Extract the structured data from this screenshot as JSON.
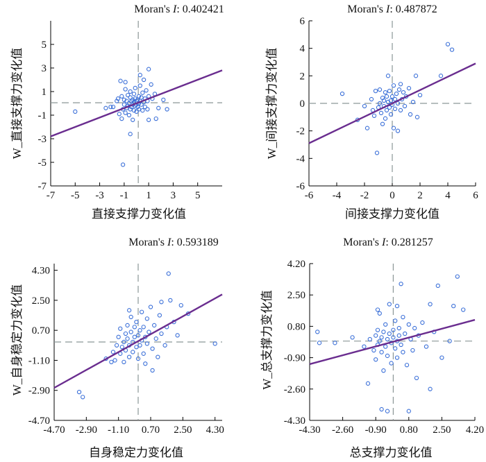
{
  "chart_data": [
    {
      "type": "scatter",
      "title_prefix": "Moran's ",
      "title_stat": "I",
      "title_value": ": 0.402421",
      "xlabel": "直接支撑力变化值",
      "ylabel": "W_直接支撑力变化值",
      "xlim": [
        -7,
        7
      ],
      "ylim": [
        -7,
        7
      ],
      "xticks": [
        "-7",
        "-5",
        "-3",
        "-1",
        "1",
        "3",
        "5"
      ],
      "yticks": [
        "-7",
        "-5",
        "-3",
        "-1",
        "1",
        "3",
        "5"
      ],
      "xtick_values": [
        -7,
        -5,
        -3,
        -1,
        1,
        3,
        5
      ],
      "ytick_values": [
        -7,
        -5,
        -3,
        -1,
        1,
        3,
        5
      ],
      "mean_x": 0.15,
      "mean_y": 0.05,
      "fit_line": [
        [
          -7,
          -2.8
        ],
        [
          7,
          2.8
        ]
      ],
      "grid": false,
      "point_color": "#3a6fd8",
      "line_color": "#6a2d8f",
      "points": [
        [
          -5,
          -0.7
        ],
        [
          -2.1,
          -0.3
        ],
        [
          -1.9,
          -0.3
        ],
        [
          -1.6,
          0.2
        ],
        [
          -1.5,
          0.4
        ],
        [
          -1.4,
          -0.9
        ],
        [
          -1.3,
          1.9
        ],
        [
          -1.2,
          0.6
        ],
        [
          -1.2,
          -1.3
        ],
        [
          -1.1,
          -0.5
        ],
        [
          -1.0,
          -0.1
        ],
        [
          -1.0,
          0.3
        ],
        [
          -0.9,
          -0.8
        ],
        [
          -0.9,
          1.2
        ],
        [
          -0.8,
          0.2
        ],
        [
          -0.8,
          -0.4
        ],
        [
          -0.7,
          0.7
        ],
        [
          -0.7,
          -0.2
        ],
        [
          -0.6,
          -1.0
        ],
        [
          -0.6,
          0.0
        ],
        [
          -0.5,
          -0.5
        ],
        [
          -0.5,
          0.5
        ],
        [
          -0.5,
          1.0
        ],
        [
          -0.4,
          -0.3
        ],
        [
          -0.4,
          0.2
        ],
        [
          -0.3,
          -1.4
        ],
        [
          -0.3,
          0.3
        ],
        [
          -0.3,
          -0.1
        ],
        [
          -0.2,
          0.8
        ],
        [
          -0.2,
          -0.6
        ],
        [
          -0.2,
          0.1
        ],
        [
          -0.1,
          0.4
        ],
        [
          -0.1,
          -0.2
        ],
        [
          -0.1,
          1.3
        ],
        [
          0.0,
          -0.1
        ],
        [
          0.0,
          0.2
        ],
        [
          0.0,
          -0.7
        ],
        [
          0.1,
          0.3
        ],
        [
          0.1,
          -0.3
        ],
        [
          0.2,
          0.6
        ],
        [
          0.2,
          0.0
        ],
        [
          0.2,
          -0.5
        ],
        [
          0.3,
          1.5
        ],
        [
          0.3,
          0.2
        ],
        [
          0.4,
          -0.1
        ],
        [
          0.4,
          0.5
        ],
        [
          0.5,
          0.9
        ],
        [
          0.5,
          -0.6
        ],
        [
          0.6,
          0.1
        ],
        [
          0.6,
          2.0
        ],
        [
          0.7,
          0.4
        ],
        [
          0.7,
          -0.3
        ],
        [
          0.8,
          1.1
        ],
        [
          0.9,
          0.2
        ],
        [
          1.0,
          0.6
        ],
        [
          1.0,
          -1.4
        ],
        [
          1.2,
          1.6
        ],
        [
          1.3,
          0.4
        ],
        [
          1.5,
          0.8
        ],
        [
          1.8,
          -0.4
        ],
        [
          2.2,
          0.3
        ],
        [
          1.0,
          2.9
        ],
        [
          0.3,
          2.4
        ],
        [
          -0.9,
          1.8
        ],
        [
          -1.1,
          -5.2
        ],
        [
          -0.5,
          -2.6
        ],
        [
          -2.5,
          -0.4
        ],
        [
          2.5,
          -0.5
        ],
        [
          1.6,
          -1.3
        ],
        [
          0.9,
          -0.5
        ]
      ]
    },
    {
      "type": "scatter",
      "title_prefix": "Moran's ",
      "title_stat": "I",
      "title_value": ": 0.487872",
      "xlabel": "间接支撑力变化值",
      "ylabel": "W_间接支撑力变化值",
      "xlim": [
        -6,
        6
      ],
      "ylim": [
        -6,
        6
      ],
      "xticks": [
        "-6",
        "-4",
        "-2",
        "0",
        "2",
        "4",
        "6"
      ],
      "yticks": [
        "-6",
        "-4",
        "-2",
        "0",
        "2",
        "4",
        "6"
      ],
      "xtick_values": [
        -6,
        -4,
        -2,
        0,
        2,
        4,
        6
      ],
      "ytick_values": [
        -6,
        -4,
        -2,
        0,
        2,
        4,
        6
      ],
      "mean_x": 0.0,
      "mean_y": 0.0,
      "fit_line": [
        [
          -6,
          -2.9
        ],
        [
          6,
          2.9
        ]
      ],
      "grid": false,
      "point_color": "#3a6fd8",
      "line_color": "#6a2d8f",
      "points": [
        [
          -3.6,
          0.7
        ],
        [
          -2.0,
          -0.2
        ],
        [
          -1.8,
          -1.8
        ],
        [
          -1.5,
          0.3
        ],
        [
          -1.4,
          -0.5
        ],
        [
          -1.2,
          0.9
        ],
        [
          -1.1,
          -3.6
        ],
        [
          -1.0,
          -0.3
        ],
        [
          -0.9,
          0.0
        ],
        [
          -0.9,
          1.0
        ],
        [
          -0.8,
          -0.7
        ],
        [
          -0.7,
          0.4
        ],
        [
          -0.7,
          -1.5
        ],
        [
          -0.6,
          0.2
        ],
        [
          -0.6,
          -0.2
        ],
        [
          -0.5,
          0.8
        ],
        [
          -0.5,
          -1.1
        ],
        [
          -0.4,
          0.5
        ],
        [
          -0.4,
          -0.5
        ],
        [
          -0.3,
          2.0
        ],
        [
          -0.3,
          0.1
        ],
        [
          -0.2,
          -0.3
        ],
        [
          -0.2,
          0.9
        ],
        [
          -0.1,
          0.2
        ],
        [
          -0.1,
          -0.8
        ],
        [
          0.0,
          0.5
        ],
        [
          0.0,
          -0.1
        ],
        [
          0.1,
          1.3
        ],
        [
          0.1,
          -1.8
        ],
        [
          0.2,
          0.3
        ],
        [
          0.2,
          -0.4
        ],
        [
          0.3,
          0.7
        ],
        [
          0.4,
          0.0
        ],
        [
          0.4,
          -2.0
        ],
        [
          0.5,
          1.0
        ],
        [
          0.6,
          -0.5
        ],
        [
          0.7,
          0.3
        ],
        [
          0.8,
          0.8
        ],
        [
          0.9,
          -0.2
        ],
        [
          1.0,
          0.5
        ],
        [
          1.2,
          1.1
        ],
        [
          1.3,
          -0.8
        ],
        [
          1.5,
          0.1
        ],
        [
          1.7,
          2.0
        ],
        [
          1.8,
          -1.0
        ],
        [
          2.0,
          0.6
        ],
        [
          3.5,
          2.0
        ],
        [
          4.0,
          4.3
        ],
        [
          4.3,
          3.9
        ],
        [
          -2.5,
          -1.2
        ],
        [
          0.6,
          1.4
        ],
        [
          -1.3,
          -0.9
        ]
      ]
    },
    {
      "type": "scatter",
      "title_prefix": "Moran's ",
      "title_stat": "I",
      "title_value": ": 0.593189",
      "xlabel": "自身稳定力变化值",
      "ylabel": "W_自身稳定力变化值",
      "xlim": [
        -4.7,
        4.7
      ],
      "ylim": [
        -4.7,
        4.7
      ],
      "xticks": [
        "-4.70",
        "-2.90",
        "-1.10",
        "0.70",
        "2.50",
        "4.30"
      ],
      "yticks": [
        "-4.70",
        "-2.90",
        "-1.10",
        "0.70",
        "2.50",
        "4.30"
      ],
      "xtick_values": [
        -4.7,
        -2.9,
        -1.1,
        0.7,
        2.5,
        4.3
      ],
      "ytick_values": [
        -4.7,
        -2.9,
        -1.1,
        0.7,
        2.5,
        4.3
      ],
      "mean_x": 0.0,
      "mean_y": 0.0,
      "fit_line": [
        [
          -4.7,
          -2.75
        ],
        [
          4.7,
          2.85
        ]
      ],
      "grid": false,
      "point_color": "#3a6fd8",
      "line_color": "#6a2d8f",
      "points": [
        [
          -3.3,
          -3.0
        ],
        [
          -3.1,
          -3.3
        ],
        [
          -1.8,
          -1.0
        ],
        [
          -1.5,
          -1.2
        ],
        [
          -1.4,
          -0.6
        ],
        [
          -1.3,
          -1.1
        ],
        [
          -1.2,
          -0.2
        ],
        [
          -1.1,
          0.3
        ],
        [
          -1.0,
          -0.7
        ],
        [
          -1.0,
          0.8
        ],
        [
          -0.9,
          -0.3
        ],
        [
          -0.8,
          0.0
        ],
        [
          -0.8,
          -1.2
        ],
        [
          -0.7,
          0.5
        ],
        [
          -0.7,
          -0.5
        ],
        [
          -0.6,
          1.0
        ],
        [
          -0.6,
          0.2
        ],
        [
          -0.5,
          -0.2
        ],
        [
          -0.5,
          -0.9
        ],
        [
          -0.4,
          0.6
        ],
        [
          -0.4,
          1.5
        ],
        [
          -0.3,
          0.0
        ],
        [
          -0.3,
          -0.6
        ],
        [
          -0.2,
          0.9
        ],
        [
          -0.2,
          0.3
        ],
        [
          -0.1,
          -0.3
        ],
        [
          -0.1,
          1.2
        ],
        [
          0.0,
          0.4
        ],
        [
          0.0,
          -1.0
        ],
        [
          0.1,
          0.7
        ],
        [
          0.1,
          -0.2
        ],
        [
          0.2,
          1.8
        ],
        [
          0.2,
          0.1
        ],
        [
          0.3,
          -0.7
        ],
        [
          0.3,
          0.9
        ],
        [
          0.4,
          0.3
        ],
        [
          0.4,
          -1.3
        ],
        [
          0.5,
          1.4
        ],
        [
          0.5,
          -0.1
        ],
        [
          0.6,
          0.6
        ],
        [
          0.7,
          2.1
        ],
        [
          0.8,
          -0.4
        ],
        [
          0.9,
          1.0
        ],
        [
          1.0,
          0.2
        ],
        [
          1.1,
          -0.9
        ],
        [
          1.2,
          1.6
        ],
        [
          1.3,
          0.5
        ],
        [
          1.5,
          -0.2
        ],
        [
          1.6,
          0.9
        ],
        [
          1.8,
          2.5
        ],
        [
          2.0,
          1.2
        ],
        [
          2.2,
          0.4
        ],
        [
          2.4,
          2.2
        ],
        [
          2.8,
          1.7
        ],
        [
          1.7,
          4.1
        ],
        [
          4.3,
          -0.1
        ],
        [
          0.8,
          -1.7
        ],
        [
          -0.5,
          1.9
        ],
        [
          1.3,
          2.4
        ]
      ]
    },
    {
      "type": "scatter",
      "title_prefix": "Moran's ",
      "title_stat": "I",
      "title_value": ": 0.281257",
      "xlabel": "总支撑力变化值",
      "ylabel": "W_总支撑力变化值",
      "xlim": [
        -4.3,
        4.2
      ],
      "ylim": [
        -4.3,
        4.2
      ],
      "xticks": [
        "-4.30",
        "-2.60",
        "-0.90",
        "0.80",
        "2.50",
        "4.20"
      ],
      "yticks": [
        "-4.30",
        "-2.60",
        "-0.90",
        "0.80",
        "2.50",
        "4.20"
      ],
      "xtick_values": [
        -4.3,
        -2.6,
        -0.9,
        0.8,
        2.5,
        4.2
      ],
      "ytick_values": [
        -4.3,
        -2.6,
        -0.9,
        0.8,
        2.5,
        4.2
      ],
      "mean_x": 0.0,
      "mean_y": 0.0,
      "fit_line": [
        [
          -4.3,
          -1.25
        ],
        [
          4.2,
          1.15
        ]
      ],
      "grid": false,
      "point_color": "#3a6fd8",
      "line_color": "#6a2d8f",
      "points": [
        [
          -3.9,
          0.5
        ],
        [
          -3.8,
          -0.1
        ],
        [
          -3.0,
          -0.1
        ],
        [
          -2.1,
          0.2
        ],
        [
          -1.5,
          -0.3
        ],
        [
          -1.3,
          -2.3
        ],
        [
          -1.2,
          0.1
        ],
        [
          -1.0,
          -0.5
        ],
        [
          -0.9,
          0.3
        ],
        [
          -0.9,
          -1.0
        ],
        [
          -0.8,
          0.6
        ],
        [
          -0.8,
          -0.2
        ],
        [
          -0.7,
          0.0
        ],
        [
          -0.7,
          1.5
        ],
        [
          -0.6,
          -0.6
        ],
        [
          -0.6,
          0.2
        ],
        [
          -0.5,
          -1.6
        ],
        [
          -0.5,
          0.5
        ],
        [
          -0.4,
          -0.3
        ],
        [
          -0.4,
          0.9
        ],
        [
          -0.3,
          0.1
        ],
        [
          -0.3,
          -0.8
        ],
        [
          -0.2,
          0.4
        ],
        [
          -0.2,
          2.0
        ],
        [
          -0.1,
          -0.1
        ],
        [
          -0.1,
          -1.2
        ],
        [
          0.0,
          0.6
        ],
        [
          0.0,
          0.2
        ],
        [
          0.1,
          -0.4
        ],
        [
          0.1,
          1.1
        ],
        [
          0.2,
          0.0
        ],
        [
          0.2,
          -0.9
        ],
        [
          0.3,
          0.7
        ],
        [
          0.3,
          0.3
        ],
        [
          0.4,
          -0.2
        ],
        [
          0.4,
          3.1
        ],
        [
          0.5,
          1.3
        ],
        [
          0.5,
          -0.6
        ],
        [
          0.6,
          0.4
        ],
        [
          0.7,
          -1.3
        ],
        [
          0.8,
          0.9
        ],
        [
          0.9,
          0.1
        ],
        [
          1.0,
          -0.5
        ],
        [
          1.1,
          0.7
        ],
        [
          1.2,
          -2.0
        ],
        [
          1.3,
          0.3
        ],
        [
          1.5,
          1.0
        ],
        [
          1.7,
          -0.3
        ],
        [
          1.9,
          2.0
        ],
        [
          2.1,
          0.5
        ],
        [
          2.3,
          3.0
        ],
        [
          2.5,
          -0.9
        ],
        [
          2.9,
          0.0
        ],
        [
          3.1,
          1.9
        ],
        [
          3.3,
          3.5
        ],
        [
          3.6,
          1.7
        ],
        [
          -0.6,
          -3.7
        ],
        [
          -0.3,
          -3.8
        ],
        [
          0.8,
          -3.8
        ],
        [
          1.9,
          -2.6
        ],
        [
          -0.8,
          1.7
        ],
        [
          0.2,
          1.9
        ]
      ]
    }
  ]
}
